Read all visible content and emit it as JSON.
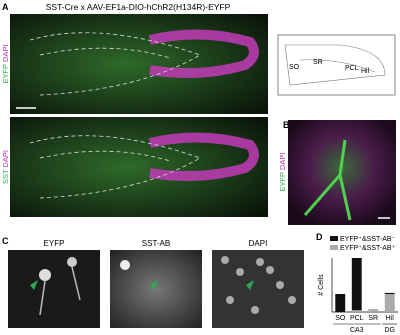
{
  "panel_a": {
    "label": "A",
    "title": "SST-Cre x AAV-EF1a-DIO-hChR2(H134R)-EYFP",
    "top_channels": [
      "EYFP",
      "DAPI"
    ],
    "bottom_channels": [
      "SST",
      "DAPI"
    ]
  },
  "schematic": {
    "regions": [
      "SO",
      "SR",
      "PCL",
      "Hil"
    ]
  },
  "panel_b": {
    "label": "B",
    "channels": [
      "EYFP",
      "DAPI"
    ]
  },
  "panel_c": {
    "label": "C",
    "columns": [
      "EYFP",
      "SST-AB",
      "DAPI"
    ]
  },
  "chart_data": {
    "type": "bar",
    "label": "D",
    "ylabel": "# Cells",
    "groups": [
      {
        "name": "CA3",
        "categories": [
          "SO",
          "PCL",
          "SR"
        ]
      },
      {
        "name": "DG",
        "categories": [
          "Hil"
        ]
      }
    ],
    "series": [
      {
        "name": "EYFP⁺&SST-AB⁻",
        "color": "#111111",
        "values": [
          50,
          145,
          0,
          3
        ]
      },
      {
        "name": "EYFP⁺&SST-AB⁺",
        "color": "#aaaaaa",
        "values": [
          0,
          5,
          8,
          50
        ]
      }
    ],
    "ylim": [
      0,
      150
    ]
  }
}
